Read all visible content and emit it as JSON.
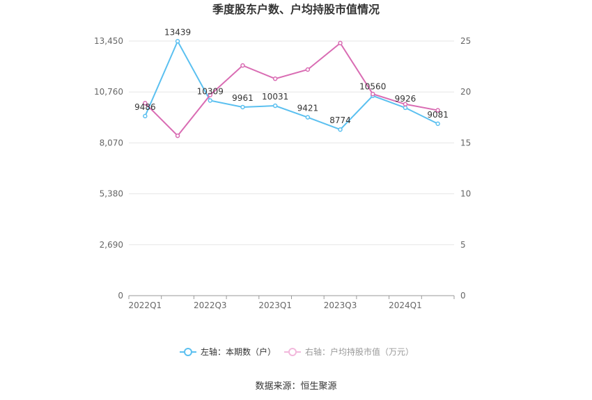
{
  "chart_data": {
    "type": "line",
    "title": "季度股东户数、户均持股市值情况",
    "x": [
      "2022Q1",
      "2022Q2",
      "2022Q3",
      "2022Q4",
      "2023Q1",
      "2023Q2",
      "2023Q3",
      "2023Q4",
      "2024Q1",
      "2024Q2"
    ],
    "x_tick_labels": [
      "2022Q1",
      "2022Q3",
      "2023Q1",
      "2023Q3",
      "2024Q1"
    ],
    "y_left": {
      "ticks": [
        "0",
        "2,690",
        "5,380",
        "8,070",
        "10,760",
        "13,450"
      ],
      "lim": [
        0,
        13450
      ]
    },
    "y_right": {
      "ticks": [
        "0",
        "5",
        "10",
        "15",
        "20",
        "25"
      ],
      "lim": [
        0,
        25
      ]
    },
    "grid": true,
    "legend_position": "bottom",
    "series": [
      {
        "name": "左轴：本期数（户）",
        "axis": "left",
        "color": "#5bc0f0",
        "values": [
          9486,
          13439,
          10309,
          9961,
          10031,
          9421,
          8774,
          10560,
          9926,
          9081
        ],
        "labels": [
          "9486",
          "13439",
          "10309",
          "9961",
          "10031",
          "9421",
          "8774",
          "10560",
          "9926",
          "9081"
        ]
      },
      {
        "name": "右轴：户均持股市值（万元）",
        "axis": "right",
        "color": "#d96cb3",
        "values": [
          18.9,
          15.7,
          19.7,
          22.6,
          21.3,
          22.2,
          24.8,
          19.8,
          18.8,
          18.2
        ]
      }
    ]
  },
  "source": "数据来源：恒生聚源"
}
